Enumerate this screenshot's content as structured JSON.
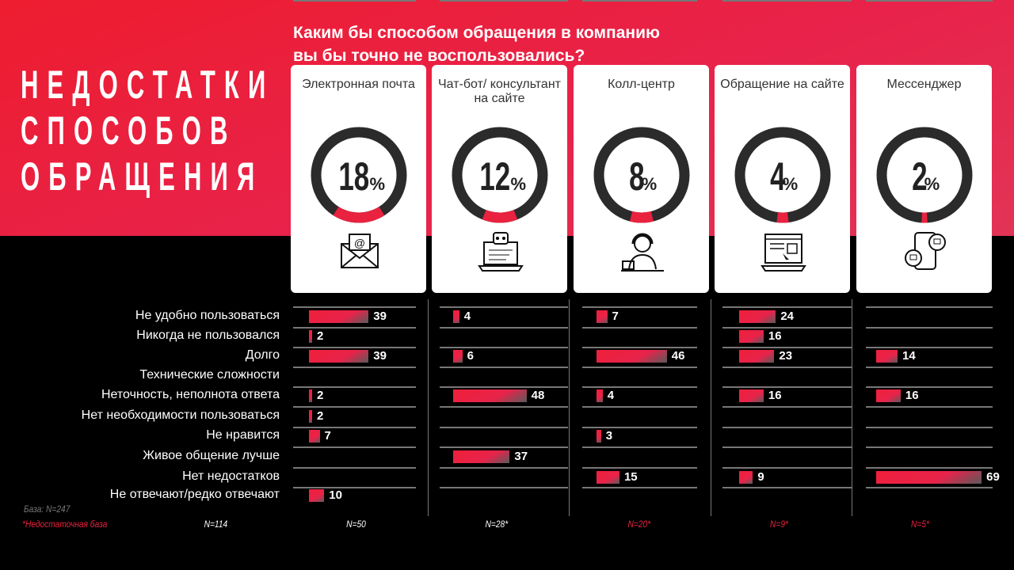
{
  "title": [
    "НЕДОСТАТКИ",
    "СПОСОБОВ",
    "ОБРАЩЕНИЯ"
  ],
  "question": [
    "Каким бы способом обращения в компанию",
    "вы бы точно не воспользовались?"
  ],
  "colors": {
    "accent": "#e8223f",
    "ring": "#2b2b2b"
  },
  "chart_data": {
    "type": "bar",
    "title": "Каким бы способом обращения в компанию вы бы точно не воспользовались?",
    "categories": [
      "Не удобно пользоваться",
      "Никогда не пользовался",
      "Долго",
      "Технические сложности",
      "Неточность, неполнота ответа",
      "Нет необходимости пользоваться",
      "Не нравится",
      "Живое общение лучше",
      "Нет недостатков",
      "Не отвечают/редко отвечают"
    ],
    "channels": [
      {
        "name": "Электронная почта",
        "icon": "email-icon",
        "share": 18,
        "n": "N=114",
        "low_base": false,
        "values": [
          39,
          2,
          39,
          null,
          2,
          2,
          7,
          null,
          null,
          10
        ]
      },
      {
        "name": "Чат-бот/ консультант на сайте",
        "icon": "chatbot-icon",
        "share": 12,
        "n": "N=50",
        "low_base": false,
        "values": [
          4,
          null,
          6,
          null,
          48,
          null,
          null,
          37,
          null,
          null
        ]
      },
      {
        "name": "Колл-центр",
        "icon": "call-center-icon",
        "share": 8,
        "n": "N=28*",
        "low_base": true,
        "values": [
          7,
          null,
          46,
          null,
          4,
          null,
          3,
          null,
          15,
          null
        ]
      },
      {
        "name": "Обращение на сайте",
        "icon": "website-icon",
        "share": 4,
        "n": "N=20*",
        "low_base": true,
        "values": [
          24,
          16,
          23,
          null,
          16,
          null,
          null,
          null,
          9,
          null
        ]
      },
      {
        "name": "Мессенджер",
        "icon": "messenger-icon",
        "share": 2,
        "n": "N=9*",
        "low_base": true,
        "values": [
          null,
          null,
          14,
          null,
          16,
          null,
          null,
          null,
          69,
          null
        ]
      }
    ],
    "extra_n": "N=5*",
    "percent_sign": "%"
  },
  "base": "База: N=247",
  "low_base_note": "*Недостаточная база"
}
